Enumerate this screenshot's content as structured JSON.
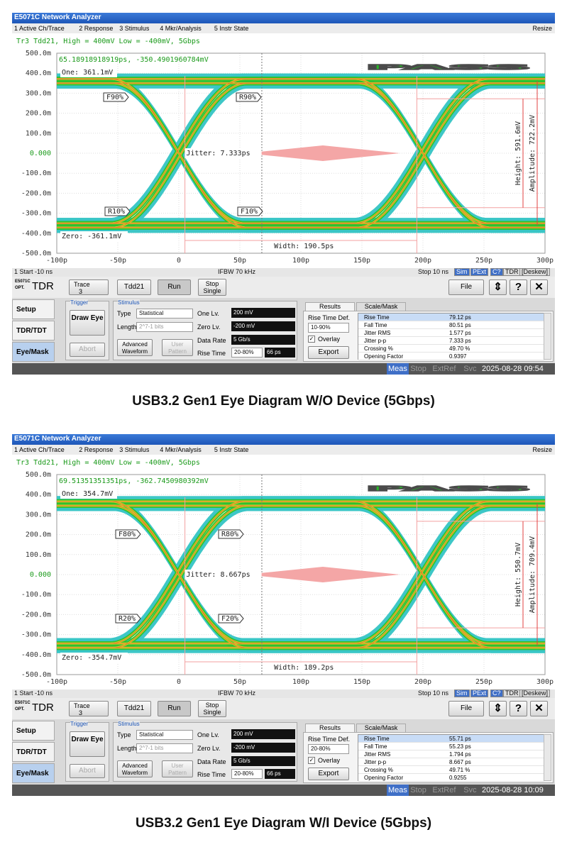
{
  "panels": [
    {
      "title": "E5071C Network Analyzer",
      "menu": [
        "1 Active Ch/Trace",
        "2 Response",
        "3 Stimulus",
        "4 Mkr/Analysis",
        "5 Instr State"
      ],
      "resize": "Resize",
      "trace_header": "Tr3 Tdd21, High = 400mV Low = -400mV, 5Gbps",
      "cursor": "65.18918918919ps, -350.4901960784mV",
      "yticks": [
        "500.0m",
        "400.0m",
        "300.0m",
        "200.0m",
        "100.0m",
        "0.000",
        "-100.0m",
        "-200.0m",
        "-300.0m",
        "-400.0m",
        "-500.0m"
      ],
      "xticks": [
        "-100p",
        "-50p",
        "0",
        "50p",
        "100p",
        "150p",
        "200p",
        "250p",
        "300p"
      ],
      "pass": "PASS",
      "one": "One: 361.1mV",
      "zero": "Zero: -361.1mV",
      "jitter": "Jitter: 7.333ps",
      "width": "Width: 190.5ps",
      "height": "Height: 591.6mV",
      "amplitude": "Amplitude: 722.2mV",
      "markers": [
        "F90%",
        "R90%",
        "R10%",
        "F10%"
      ],
      "status": {
        "start": "1 Start -10 ns",
        "ifbw": "IFBW 70 kHz",
        "stop": "Stop 10 ns",
        "flags": [
          "Sim",
          "PExt",
          "C?",
          "TDR",
          "[Deskew]"
        ]
      },
      "logo": {
        "model": "E5071C",
        "opt": "OPT.",
        "tdr": "TDR"
      },
      "toolbar": {
        "trace": "Trace",
        "trace_num": "3",
        "param": "Tdd21",
        "run": "Run",
        "stop_single": "Stop Single",
        "file": "File"
      },
      "tabs": [
        "Setup",
        "TDR/TDT",
        "Eye/Mask"
      ],
      "trigger": {
        "label": "Trigger",
        "draw_eye": "Draw Eye",
        "abort": "Abort"
      },
      "stimulus": {
        "label": "Stimulus",
        "type_label": "Type",
        "type": "Statistical",
        "length_label": "Length",
        "length": "2^7-1 bits",
        "advanced": "Advanced Waveform",
        "user": "User Pattern",
        "one_label": "One Lv.",
        "one": "200 mV",
        "zero_label": "Zero Lv.",
        "zero": "-200 mV",
        "rate_label": "Data Rate",
        "rate": "5 Gb/s",
        "rise_label": "Rise Time",
        "rise_def": "20-80%",
        "rise": "66 ps"
      },
      "results": {
        "tabs": [
          "Results",
          "Scale/Mask"
        ],
        "def_label": "Rise Time Def.",
        "def": "10-90%",
        "overlay": "Overlay",
        "export": "Export",
        "rows": [
          [
            "Rise Time",
            "79.12 ps"
          ],
          [
            "Fall Time",
            "80.51 ps"
          ],
          [
            "Jitter RMS",
            "1.577 ps"
          ],
          [
            "Jitter p-p",
            "7.333 ps"
          ],
          [
            "Crossing %",
            "49.70 %"
          ],
          [
            "Opening Factor",
            "0.9397"
          ]
        ]
      },
      "footer": {
        "flags": [
          "Meas",
          "Stop",
          "ExtRef",
          "Svc"
        ],
        "time": "2025-08-28 09:54"
      },
      "caption": "USB3.2 Gen1 Eye Diagram W/O Device (5Gbps)"
    },
    {
      "title": "E5071C Network Analyzer",
      "menu": [
        "1 Active Ch/Trace",
        "2 Response",
        "3 Stimulus",
        "4 Mkr/Analysis",
        "5 Instr State"
      ],
      "resize": "Resize",
      "trace_header": "Tr3 Tdd21, High = 400mV Low = -400mV, 5Gbps",
      "cursor": "69.51351351351ps, -362.7450980392mV",
      "yticks": [
        "500.0m",
        "400.0m",
        "300.0m",
        "200.0m",
        "100.0m",
        "0.000",
        "-100.0m",
        "-200.0m",
        "-300.0m",
        "-400.0m",
        "-500.0m"
      ],
      "xticks": [
        "-100p",
        "-50p",
        "0",
        "50p",
        "100p",
        "150p",
        "200p",
        "250p",
        "300p"
      ],
      "pass": "PASS",
      "one": "One: 354.7mV",
      "zero": "Zero: -354.7mV",
      "jitter": "Jitter: 8.667ps",
      "width": "Width: 189.2ps",
      "height": "Height: 550.7mV",
      "amplitude": "Amplitude: 709.4mV",
      "markers": [
        "F80%",
        "R80%",
        "R20%",
        "F20%"
      ],
      "status": {
        "start": "1 Start -10 ns",
        "ifbw": "IFBW 70 kHz",
        "stop": "Stop 10 ns",
        "flags": [
          "Sim",
          "PExt",
          "C?",
          "TDR",
          "[Deskew]"
        ]
      },
      "logo": {
        "model": "E5071C",
        "opt": "OPT.",
        "tdr": "TDR"
      },
      "toolbar": {
        "trace": "Trace",
        "trace_num": "3",
        "param": "Tdd21",
        "run": "Run",
        "stop_single": "Stop Single",
        "file": "File"
      },
      "tabs": [
        "Setup",
        "TDR/TDT",
        "Eye/Mask"
      ],
      "trigger": {
        "label": "Trigger",
        "draw_eye": "Draw Eye",
        "abort": "Abort"
      },
      "stimulus": {
        "label": "Stimulus",
        "type_label": "Type",
        "type": "Statistical",
        "length_label": "Length",
        "length": "2^7-1 bits",
        "advanced": "Advanced Waveform",
        "user": "User Pattern",
        "one_label": "One Lv.",
        "one": "200 mV",
        "zero_label": "Zero Lv.",
        "zero": "-200 mV",
        "rate_label": "Data Rate",
        "rate": "5 Gb/s",
        "rise_label": "Rise Time",
        "rise_def": "20-80%",
        "rise": "66 ps"
      },
      "results": {
        "tabs": [
          "Results",
          "Scale/Mask"
        ],
        "def_label": "Rise Time Def.",
        "def": "20-80%",
        "overlay": "Overlay",
        "export": "Export",
        "rows": [
          [
            "Rise Time",
            "55.71 ps"
          ],
          [
            "Fall Time",
            "55.23 ps"
          ],
          [
            "Jitter RMS",
            "1.794 ps"
          ],
          [
            "Jitter p-p",
            "8.667 ps"
          ],
          [
            "Crossing %",
            "49.71 %"
          ],
          [
            "Opening Factor",
            "0.9255"
          ]
        ]
      },
      "footer": {
        "flags": [
          "Meas",
          "Stop",
          "ExtRef",
          "Svc"
        ],
        "time": "2025-08-28 10:09"
      },
      "caption": "USB3.2 Gen1 Eye Diagram W/I Device (5Gbps)"
    }
  ]
}
